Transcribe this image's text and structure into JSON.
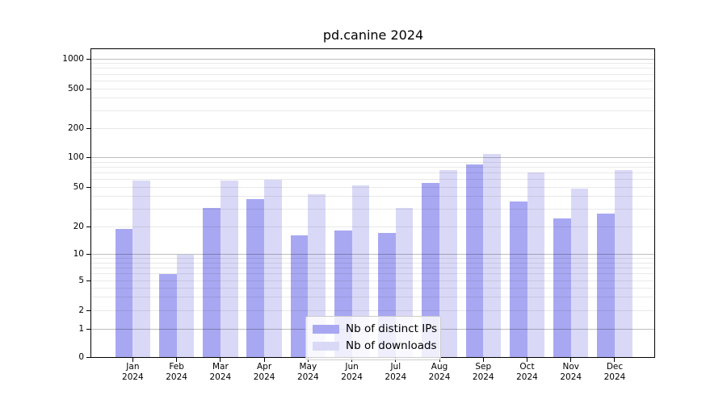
{
  "chart_data": {
    "type": "bar",
    "title": "pd.canine 2024",
    "categories": [
      "Jan",
      "Feb",
      "Mar",
      "Apr",
      "May",
      "Jun",
      "Jul",
      "Aug",
      "Sep",
      "Oct",
      "Nov",
      "Dec"
    ],
    "category_year": "2024",
    "series": [
      {
        "name": "Nb of distinct IPs",
        "color": "#a8a8f2",
        "values": [
          19,
          6,
          31,
          38,
          16,
          18,
          17,
          55,
          85,
          36,
          24,
          27
        ]
      },
      {
        "name": "Nb of downloads",
        "color": "#d9d9f7",
        "values": [
          58,
          10,
          58,
          59,
          42,
          52,
          31,
          74,
          110,
          70,
          48,
          74
        ]
      }
    ],
    "xlabel": "",
    "ylabel": "",
    "yscale": "symlog",
    "ylim": [
      0,
      1300
    ],
    "y_ticks": [
      0,
      1,
      2,
      5,
      10,
      20,
      50,
      100,
      200,
      500,
      1000
    ],
    "gridlines_major": [
      1,
      10,
      100,
      1000
    ],
    "gridlines_minor": [
      2,
      3,
      4,
      5,
      6,
      7,
      8,
      9,
      20,
      30,
      40,
      50,
      60,
      70,
      80,
      90,
      200,
      300,
      400,
      500,
      600,
      700,
      800,
      900
    ],
    "grid": true,
    "legend_position": "lower center"
  },
  "colors": {
    "axis": "#000000",
    "major_grid": "#bdbdbd",
    "minor_grid": "#e8e8e8",
    "legend_border": "#cccccc",
    "background": "#ffffff"
  }
}
